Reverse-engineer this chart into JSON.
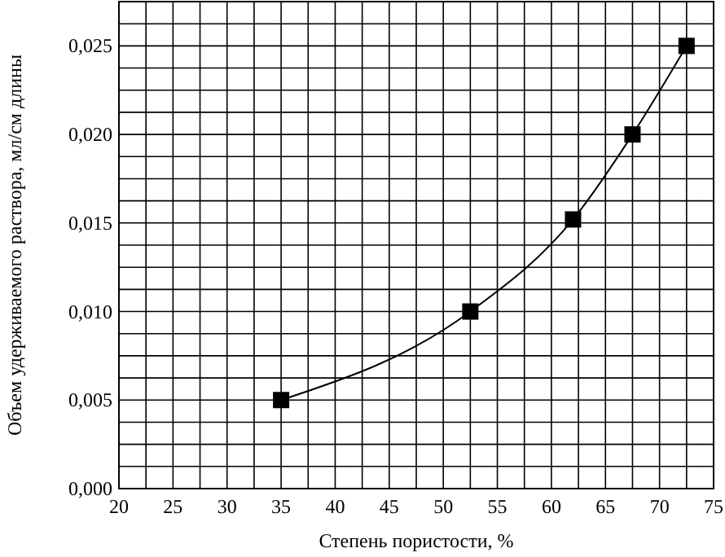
{
  "chart_data": {
    "type": "line",
    "xlabel": "Степень пористости, %",
    "ylabel": "Объем удерживаемого раствора, мл/см длины",
    "x": [
      35,
      52.5,
      62,
      67.5,
      72.5
    ],
    "series": [
      {
        "color": "#000000",
        "values": [
          0.005,
          0.01,
          0.0152,
          0.02,
          0.025
        ]
      }
    ],
    "xlim": [
      20,
      75
    ],
    "xticks": [
      20,
      {
        "value": 22.5,
        "label": null
      },
      25,
      {
        "value": 27.5,
        "label": null
      },
      30,
      {
        "value": 32.5,
        "label": null
      },
      35,
      {
        "value": 37.5,
        "label": null
      },
      40,
      {
        "value": 42.5,
        "label": null
      },
      45,
      {
        "value": 47.5,
        "label": null
      },
      50,
      {
        "value": 52.5,
        "label": null
      },
      55,
      {
        "value": 57.5,
        "label": null
      },
      60,
      {
        "value": 62.5,
        "label": null
      },
      65,
      {
        "value": 67.5,
        "label": null
      },
      70,
      {
        "value": 72.5,
        "label": null
      },
      75
    ],
    "ylim": [
      0,
      0.0275
    ],
    "yticks": [
      {
        "value": 0,
        "label": "0,000"
      },
      {
        "value": 0.00125,
        "label": null
      },
      {
        "value": 0.0025,
        "label": null
      },
      {
        "value": 0.00375,
        "label": null
      },
      {
        "value": 0.005,
        "label": "0,005"
      },
      {
        "value": 0.00625,
        "label": null
      },
      {
        "value": 0.0075,
        "label": null
      },
      {
        "value": 0.00875,
        "label": null
      },
      {
        "value": 0.01,
        "label": "0,010"
      },
      {
        "value": 0.01125,
        "label": null
      },
      {
        "value": 0.0125,
        "label": null
      },
      {
        "value": 0.01375,
        "label": null
      },
      {
        "value": 0.015,
        "label": "0,015"
      },
      {
        "value": 0.01625,
        "label": null
      },
      {
        "value": 0.0175,
        "label": null
      },
      {
        "value": 0.01875,
        "label": null
      },
      {
        "value": 0.02,
        "label": "0,020"
      },
      {
        "value": 0.02125,
        "label": null
      },
      {
        "value": 0.0225,
        "label": null
      },
      {
        "value": 0.02375,
        "label": null
      },
      {
        "value": 0.025,
        "label": "0,025"
      },
      {
        "value": 0.02625,
        "label": null
      },
      {
        "value": 0.0275,
        "label": null
      }
    ],
    "grid": true,
    "marker": "square",
    "line_style": "solid"
  }
}
